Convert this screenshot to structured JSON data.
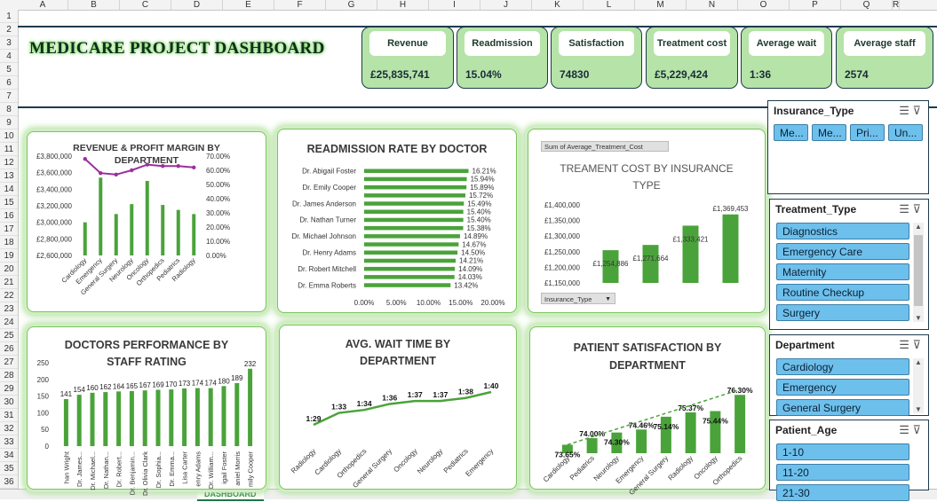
{
  "columns": [
    "A",
    "B",
    "C",
    "D",
    "E",
    "F",
    "G",
    "H",
    "I",
    "J",
    "K",
    "L",
    "M",
    "N",
    "O",
    "P",
    "Q",
    "R"
  ],
  "rows": [
    "1",
    "2",
    "3",
    "4",
    "5",
    "6",
    "7",
    "8",
    "9",
    "10",
    "11",
    "12",
    "13",
    "14",
    "15",
    "16",
    "17",
    "18",
    "19",
    "20",
    "21",
    "22",
    "23",
    "24",
    "25",
    "26",
    "27",
    "28",
    "29",
    "30",
    "31",
    "32",
    "33",
    "34",
    "35",
    "36"
  ],
  "sheet_tab": "DASHBOARD",
  "title": "MEDICARE PROJECT DASHBOARD",
  "kpis": [
    {
      "label": "Revenue",
      "value": "£25,835,741"
    },
    {
      "label": "Readmission",
      "value": "15.04%"
    },
    {
      "label": "Satisfaction",
      "value": "74830"
    },
    {
      "label": "Treatment cost",
      "value": "£5,229,424"
    },
    {
      "label": "Average wait",
      "value": "1:36"
    },
    {
      "label": "Average staff",
      "value": "2574"
    }
  ],
  "chart_data": [
    {
      "type": "bar",
      "title": "REVENUE & PROFIT MARGIN BY DEPARTMENT",
      "categories": [
        "Cardiology",
        "Emergency",
        "General Surgery",
        "Neurology",
        "Oncology",
        "Orthopedics",
        "Pediatrics",
        "Radiology"
      ],
      "series": [
        {
          "values": [
            3000000,
            3540000,
            3100000,
            3220000,
            3500000,
            3210000,
            3150000,
            3100000
          ]
        },
        {
          "values": [
            0.68,
            0.58,
            0.57,
            0.6,
            0.64,
            0.63,
            0.63,
            0.62
          ]
        }
      ],
      "yticks": [
        "£3,800,000",
        "£3,600,000",
        "£3,400,000",
        "£3,200,000",
        "£3,000,000",
        "£2,800,000",
        "£2,600,000"
      ],
      "y2ticks": [
        "70.00%",
        "60.00%",
        "50.00%",
        "40.00%",
        "30.00%",
        "20.00%",
        "10.00%",
        "0.00%"
      ],
      "ylim": [
        2600000,
        3800000
      ],
      "y2lim": [
        0,
        0.7
      ]
    },
    {
      "type": "bar",
      "title": "READMISSION RATE BY DOCTOR",
      "categories": [
        "Dr. Abigail Foster",
        "",
        "Dr. Emily Cooper",
        "",
        "Dr. James Anderson",
        "",
        "Dr. Nathan Turner",
        "",
        "Dr. Michael Johnson",
        "",
        "Dr. Henry Adams",
        "",
        "Dr. Robert Mitchell",
        "",
        "Dr. Emma Roberts"
      ],
      "values": [
        16.21,
        15.94,
        15.89,
        15.72,
        15.49,
        15.4,
        15.4,
        15.38,
        14.89,
        14.67,
        14.5,
        14.21,
        14.09,
        14.03,
        13.42
      ],
      "data_labels": [
        "16.21%",
        "15.94%",
        "15.89%",
        "15.72%",
        "15.49%",
        "15.40%",
        "15.40%",
        "15.38%",
        "14.89%",
        "14.67%",
        "14.50%",
        "14.21%",
        "14.09%",
        "14.03%",
        "13.42%"
      ],
      "xticks": [
        "0.00%",
        "5.00%",
        "10.00%",
        "15.00%",
        "20.00%"
      ],
      "xlim": [
        0,
        20
      ]
    },
    {
      "type": "bar",
      "title": "TREAMENT COST BY INSURANCE TYPE",
      "field_button": "Sum of Average_Treatment_Cost",
      "filter_button": "Insurance_Type",
      "categories": [
        "",
        "",
        "",
        ""
      ],
      "values": [
        1254886,
        1271664,
        1333421,
        1369453
      ],
      "data_labels": [
        "£1,254,886",
        "£1,271,664",
        "£1,333,421",
        "£1,369,453"
      ],
      "yticks": [
        "£1,400,000",
        "£1,350,000",
        "£1,300,000",
        "£1,250,000",
        "£1,200,000",
        "£1,150,000"
      ],
      "ylim": [
        1150000,
        1400000
      ]
    },
    {
      "type": "bar",
      "title": "DOCTORS PERFORMANCE BY STAFF RATING",
      "categories": [
        "han Wright",
        "Dr. James...",
        "Dr. Michael...",
        "Dr. Nathan...",
        "Dr. Robert...",
        "Dr. Benjamin...",
        "Dr. Olivia Clark",
        "Dr. Sophia...",
        "Dr. Emma...",
        "Lisa Carter",
        "enry Adams",
        "Dr. William...",
        "igail Foster",
        "aniel Morris",
        "mily Cooper"
      ],
      "values": [
        141,
        154,
        160,
        162,
        164,
        165,
        167,
        169,
        170,
        173,
        174,
        174,
        180,
        189,
        232
      ],
      "data_labels": [
        "141",
        "154",
        "160",
        "162",
        "164",
        "165",
        "167",
        "169",
        "170",
        "173",
        "174",
        "174",
        "180",
        "189",
        "232"
      ],
      "yticks": [
        "250",
        "200",
        "150",
        "100",
        "50",
        "0"
      ],
      "ylim": [
        0,
        250
      ]
    },
    {
      "type": "line",
      "title": "AVG. WAIT TIME BY DEPARTMENT",
      "categories": [
        "Radiology",
        "Cardiology",
        "Orthopedics",
        "General Surgery",
        "Oncology",
        "Neurology",
        "Pediatrics",
        "Emergency"
      ],
      "values": [
        89,
        93,
        94,
        96,
        97,
        97,
        98,
        100
      ],
      "data_labels": [
        "1:29",
        "1:33",
        "1:34",
        "1:36",
        "1:37",
        "1:37",
        "1:38",
        "1:40"
      ]
    },
    {
      "type": "bar",
      "title": "PATIENT SATISFACTION BY DEPARTMENT",
      "categories": [
        "Cardiology",
        "Pediatrics",
        "Neurology",
        "Emergency",
        "General Surgery",
        "Radiology",
        "Oncology",
        "Orthopedics"
      ],
      "values": [
        73.65,
        74.0,
        74.3,
        74.46,
        75.14,
        75.37,
        75.44,
        76.3
      ],
      "data_labels": [
        "73.65%",
        "74.00%",
        "74.30%",
        "74.46%",
        "75.14%",
        "75.37%",
        "75.44%",
        "76.30%"
      ],
      "ylim": [
        73.2,
        76.5
      ]
    }
  ],
  "slicers": [
    {
      "title": "Insurance_Type",
      "items": [
        "Me...",
        "Me...",
        "Pri...",
        "Un..."
      ]
    },
    {
      "title": "Treatment_Type",
      "items": [
        "Diagnostics",
        "Emergency Care",
        "Maternity",
        "Routine Checkup",
        "Surgery"
      ]
    },
    {
      "title": "Department",
      "items": [
        "Cardiology",
        "Emergency",
        "General Surgery"
      ]
    },
    {
      "title": "Patient_Age",
      "items": [
        "1-10",
        "11-20",
        "21-30"
      ]
    }
  ]
}
